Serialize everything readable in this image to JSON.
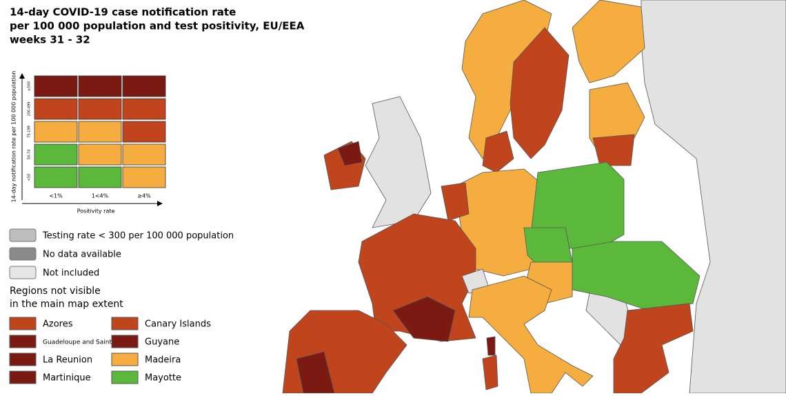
{
  "title": [
    "14-day COVID-19 case notification rate",
    "per 100 000 population and test positivity, EU/EEA",
    "weeks 31 - 32"
  ],
  "matrix": {
    "y_label": "14-day notification rate per 100 000 population",
    "x_label": "Positivity rate",
    "rows": [
      {
        "label": "≥500",
        "colors": [
          "#7a1a12",
          "#7a1a12",
          "#7a1a12"
        ]
      },
      {
        "label": "200-499",
        "colors": [
          "#c0441c",
          "#c0441c",
          "#c0441c"
        ]
      },
      {
        "label": "75-199",
        "colors": [
          "#f5ad3f",
          "#f5ad3f",
          "#c0441c"
        ]
      },
      {
        "label": "50-74",
        "colors": [
          "#5cb83a",
          "#f5ad3f",
          "#f5ad3f"
        ]
      },
      {
        "label": "<50",
        "colors": [
          "#5cb83a",
          "#5cb83a",
          "#f5ad3f"
        ]
      }
    ],
    "columns": [
      "<1%",
      "1<4%",
      "≥4%"
    ]
  },
  "legend": [
    {
      "label": "Testing rate < 300 per 100 000 population",
      "color": "#bdbdbd"
    },
    {
      "label": "No data available",
      "color": "#8a8a8a"
    },
    {
      "label": "Not included",
      "color": "#e6e6e6"
    }
  ],
  "regions_title": [
    "Regions not visible",
    "in the main map extent"
  ],
  "regions": [
    {
      "name": "Azores",
      "color": "#c0441c"
    },
    {
      "name": "Canary Islands",
      "color": "#c0441c"
    },
    {
      "name": "Guadeloupe and Saint Martin",
      "color": "#7a1a12"
    },
    {
      "name": "Guyane",
      "color": "#7a1a12"
    },
    {
      "name": "La Reunion",
      "color": "#7a1a12"
    },
    {
      "name": "Madeira",
      "color": "#f5ad3f"
    },
    {
      "name": "Martinique",
      "color": "#7a1a12"
    },
    {
      "name": "Mayotte",
      "color": "#5cb83a"
    }
  ]
}
